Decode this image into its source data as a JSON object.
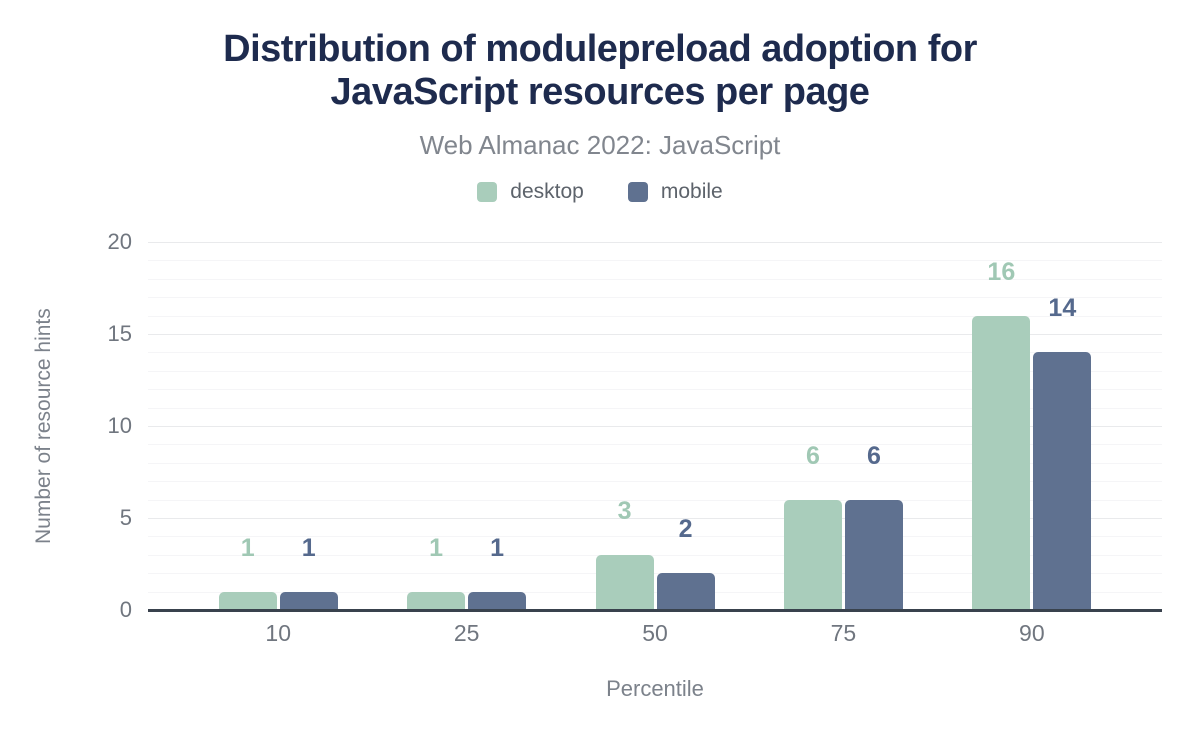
{
  "header": {
    "title": "Distribution of modulepreload adoption for JavaScript resources per page",
    "subtitle": "Web Almanac 2022: JavaScript"
  },
  "legend": {
    "items": [
      {
        "label": "desktop",
        "color": "#a9cdbb"
      },
      {
        "label": "mobile",
        "color": "#5f7190"
      }
    ]
  },
  "chart_data": {
    "type": "bar",
    "title": "Distribution of modulepreload adoption for JavaScript resources per page",
    "subtitle": "Web Almanac 2022: JavaScript",
    "categories": [
      "10",
      "25",
      "50",
      "75",
      "90"
    ],
    "series": [
      {
        "name": "desktop",
        "color": "#a9cdbb",
        "label_color": "#a0c8b4",
        "values": [
          1,
          1,
          3,
          6,
          16
        ]
      },
      {
        "name": "mobile",
        "color": "#5f7190",
        "label_color": "#55698d",
        "values": [
          1,
          1,
          2,
          6,
          14
        ]
      }
    ],
    "xlabel": "Percentile",
    "ylabel": "Number of resource hints",
    "ylim": [
      0,
      20
    ],
    "ytick_step": 5,
    "minor_grid_step": 1,
    "grid": "on",
    "legend_position": "top",
    "bar_value_labels": true
  },
  "colors": {
    "background": "#ffffff",
    "title": "#1e2b4e",
    "subtitle": "#81868e",
    "legend_text": "#5d636b",
    "tick_label": "#70767f",
    "axis_title": "#7c828b",
    "axis_line": "#39424d",
    "grid_major": "#e9eaec",
    "grid_minor": "#f5f5f7"
  }
}
